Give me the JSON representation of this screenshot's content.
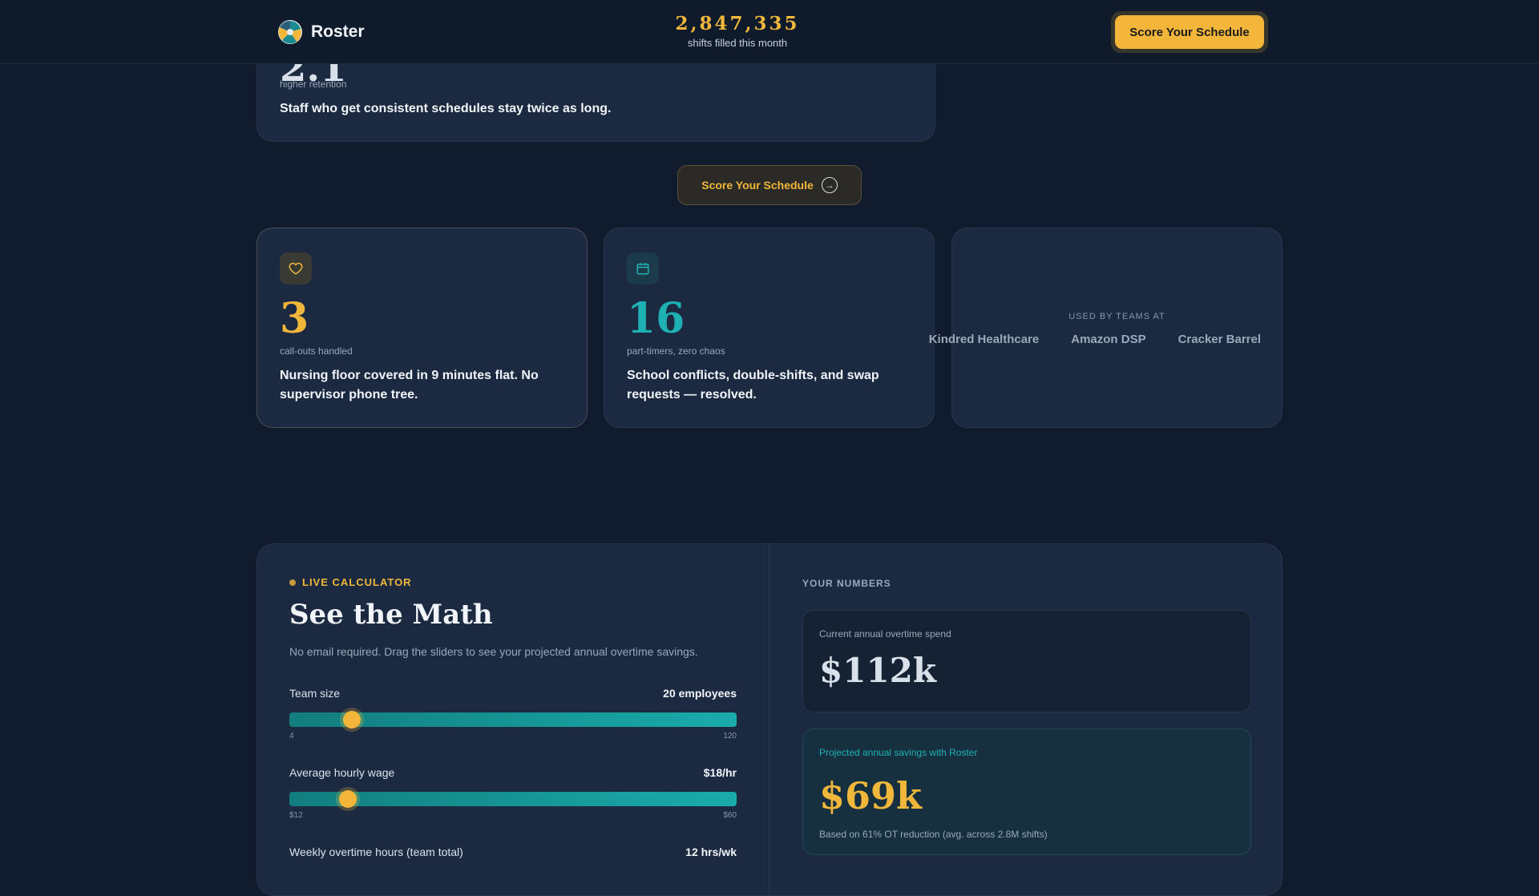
{
  "nav": {
    "brand_name": "Roster",
    "counter_value": "2,847,335",
    "counter_label": "shifts filled this month",
    "cta_label": "Score Your Schedule"
  },
  "retention_card": {
    "big_value": "2.1",
    "label": "higher retention",
    "text": "Staff who get consistent schedules stay twice as long."
  },
  "mid_cta": {
    "label": "Score Your Schedule",
    "icon": "arrow-right-circle-icon"
  },
  "stat_cards": [
    {
      "icon": "heart-icon",
      "value": "3",
      "label": "call-outs handled",
      "text": "Nursing floor covered in 9 minutes flat. No supervisor phone tree."
    },
    {
      "icon": "calendar-icon",
      "value": "16",
      "label": "part-timers, zero chaos",
      "text": "School conflicts, double-shifts, and swap requests — resolved."
    }
  ],
  "used_by": {
    "heading": "USED BY TEAMS AT",
    "logos": [
      "Kindred Healthcare",
      "Amazon DSP",
      "Cracker Barrel"
    ]
  },
  "calculator": {
    "tag": "LIVE CALCULATOR",
    "title": "See the Math",
    "description": "No email required. Drag the sliders to see your projected annual overtime savings.",
    "sliders": [
      {
        "label": "Team size",
        "value": "20 employees",
        "min": "4",
        "max": "120",
        "fraction": 0.14
      },
      {
        "label": "Average hourly wage",
        "value": "$18/hr",
        "min": "$12",
        "max": "$60",
        "fraction": 0.13
      },
      {
        "label": "Weekly overtime hours (team total)",
        "value": "12 hrs/wk"
      }
    ],
    "numbers_heading": "YOUR NUMBERS",
    "spend_label": "Current annual overtime spend",
    "spend_value": "$112k",
    "savings_label": "Projected annual savings with Roster",
    "savings_value": "$69k",
    "savings_note": "Based on 61% OT reduction (avg. across 2.8M shifts)"
  },
  "colors": {
    "accent_gold": "#f0b73a",
    "accent_teal": "#1fb0b3",
    "background": "#101c2e",
    "card": "#1b2a40"
  }
}
